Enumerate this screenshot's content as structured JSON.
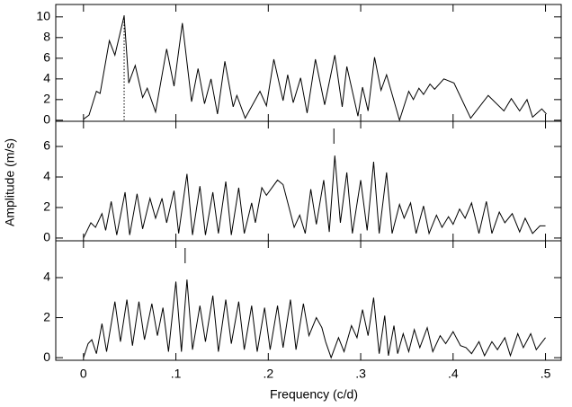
{
  "chart_data": [
    {
      "type": "line",
      "xlim": [
        -0.03,
        0.517
      ],
      "ylim": [
        -0.1,
        11.2
      ],
      "xticks": [
        0,
        0.1,
        0.2,
        0.3,
        0.4,
        0.5
      ],
      "yticks": [
        0,
        2,
        4,
        6,
        8,
        10
      ],
      "marker_x": 0.044,
      "marker_style": "dotted",
      "color": "#000000",
      "x": [
        0.0,
        0.006,
        0.014,
        0.018,
        0.028,
        0.034,
        0.044,
        0.049,
        0.056,
        0.064,
        0.069,
        0.078,
        0.09,
        0.098,
        0.107,
        0.117,
        0.124,
        0.131,
        0.138,
        0.145,
        0.153,
        0.162,
        0.166,
        0.175,
        0.191,
        0.198,
        0.206,
        0.216,
        0.221,
        0.227,
        0.235,
        0.242,
        0.251,
        0.261,
        0.272,
        0.28,
        0.285,
        0.297,
        0.302,
        0.308,
        0.315,
        0.322,
        0.328,
        0.342,
        0.352,
        0.357,
        0.363,
        0.368,
        0.375,
        0.38,
        0.39,
        0.401,
        0.419,
        0.438,
        0.455,
        0.463,
        0.472,
        0.48,
        0.486,
        0.496,
        0.501
      ],
      "values": [
        0.1,
        0.5,
        2.8,
        2.6,
        7.7,
        6.3,
        10.1,
        3.6,
        5.3,
        2.2,
        3.1,
        0.8,
        6.9,
        3.3,
        9.4,
        1.8,
        5.0,
        1.6,
        4.0,
        0.6,
        5.7,
        1.3,
        2.4,
        0.2,
        2.8,
        1.4,
        5.9,
        1.9,
        4.4,
        1.7,
        4.1,
        0.7,
        5.9,
        1.5,
        6.3,
        1.3,
        5.2,
        0.4,
        3.2,
        0.9,
        6.1,
        2.9,
        4.4,
        0.0,
        2.8,
        2.0,
        3.1,
        2.5,
        3.5,
        3.0,
        4.0,
        3.6,
        0.2,
        2.4,
        0.9,
        2.1,
        0.9,
        2.0,
        0.3,
        1.1,
        0.6
      ]
    },
    {
      "type": "line",
      "xlim": [
        -0.03,
        0.517
      ],
      "ylim": [
        -0.18,
        7.65
      ],
      "xticks": [
        0,
        0.1,
        0.2,
        0.3,
        0.4,
        0.5
      ],
      "yticks": [
        0,
        2,
        4,
        6
      ],
      "ylabel": "Amplitude (m/s)",
      "marker_x": 0.271,
      "marker_style": "tick",
      "color": "#000000",
      "x": [
        0.0,
        0.008,
        0.013,
        0.02,
        0.024,
        0.03,
        0.036,
        0.045,
        0.05,
        0.058,
        0.064,
        0.072,
        0.078,
        0.085,
        0.09,
        0.098,
        0.103,
        0.112,
        0.118,
        0.126,
        0.132,
        0.14,
        0.146,
        0.154,
        0.16,
        0.168,
        0.174,
        0.182,
        0.186,
        0.193,
        0.198,
        0.21,
        0.216,
        0.228,
        0.234,
        0.24,
        0.246,
        0.252,
        0.26,
        0.266,
        0.272,
        0.278,
        0.285,
        0.291,
        0.3,
        0.307,
        0.314,
        0.32,
        0.328,
        0.334,
        0.342,
        0.347,
        0.354,
        0.36,
        0.368,
        0.374,
        0.382,
        0.388,
        0.395,
        0.4,
        0.407,
        0.413,
        0.42,
        0.428,
        0.436,
        0.442,
        0.45,
        0.456,
        0.464,
        0.472,
        0.478,
        0.486,
        0.494,
        0.5
      ],
      "values": [
        0.0,
        1.0,
        0.7,
        1.6,
        0.5,
        2.4,
        0.2,
        3.0,
        0.2,
        2.9,
        0.6,
        2.6,
        1.3,
        2.6,
        1.0,
        3.1,
        0.3,
        4.2,
        0.2,
        3.4,
        0.2,
        3.0,
        0.3,
        3.7,
        0.2,
        3.3,
        0.3,
        2.3,
        1.0,
        3.3,
        2.8,
        3.8,
        3.5,
        0.7,
        1.5,
        0.3,
        3.2,
        0.9,
        3.8,
        0.4,
        5.4,
        1.0,
        4.3,
        0.3,
        3.8,
        0.5,
        5.0,
        0.3,
        4.3,
        0.3,
        2.2,
        1.3,
        2.3,
        0.3,
        2.1,
        0.3,
        1.5,
        0.7,
        1.4,
        0.9,
        1.9,
        1.3,
        2.3,
        0.3,
        2.4,
        0.3,
        1.7,
        1.0,
        1.6,
        0.4,
        1.3,
        0.3,
        0.8,
        0.8
      ]
    },
    {
      "type": "line",
      "xlim": [
        -0.03,
        0.517
      ],
      "ylim": [
        -0.13,
        5.84
      ],
      "xticks": [
        0,
        {
          "value": 0.1,
          "label": ".1"
        },
        {
          "value": 0.2,
          "label": ".2"
        },
        {
          "value": 0.3,
          "label": ".3"
        },
        {
          "value": 0.4,
          "label": ".4"
        },
        {
          "value": 0.5,
          "label": ".5"
        }
      ],
      "yticks": [
        0,
        2,
        4
      ],
      "xlabel": "Frequency (c/d)",
      "marker_x": 0.11,
      "marker_style": "tick",
      "color": "#000000",
      "x": [
        0.0,
        0.005,
        0.009,
        0.014,
        0.02,
        0.025,
        0.034,
        0.04,
        0.047,
        0.053,
        0.06,
        0.066,
        0.074,
        0.08,
        0.086,
        0.092,
        0.1,
        0.106,
        0.112,
        0.118,
        0.126,
        0.132,
        0.14,
        0.146,
        0.154,
        0.16,
        0.168,
        0.174,
        0.182,
        0.188,
        0.196,
        0.202,
        0.21,
        0.216,
        0.224,
        0.23,
        0.238,
        0.244,
        0.252,
        0.258,
        0.262,
        0.268,
        0.276,
        0.282,
        0.29,
        0.296,
        0.302,
        0.308,
        0.314,
        0.32,
        0.326,
        0.33,
        0.336,
        0.34,
        0.346,
        0.352,
        0.358,
        0.364,
        0.372,
        0.378,
        0.386,
        0.392,
        0.4,
        0.408,
        0.414,
        0.42,
        0.428,
        0.434,
        0.442,
        0.448,
        0.456,
        0.462,
        0.47,
        0.476,
        0.484,
        0.49,
        0.5
      ],
      "values": [
        0.0,
        0.7,
        0.9,
        0.2,
        1.7,
        0.3,
        2.8,
        0.8,
        2.9,
        0.6,
        2.8,
        0.9,
        2.7,
        1.1,
        2.5,
        0.3,
        3.8,
        0.3,
        3.9,
        0.4,
        2.6,
        0.8,
        3.1,
        0.3,
        2.9,
        0.7,
        2.8,
        0.4,
        2.6,
        0.3,
        2.5,
        0.4,
        2.6,
        0.5,
        2.9,
        0.4,
        2.7,
        1.1,
        2.0,
        1.5,
        0.8,
        0.0,
        1.0,
        0.3,
        1.6,
        1.0,
        2.4,
        1.1,
        3.0,
        0.2,
        2.1,
        0.1,
        1.6,
        0.2,
        1.2,
        0.3,
        1.4,
        0.5,
        1.5,
        0.3,
        1.1,
        0.7,
        1.3,
        0.6,
        0.5,
        0.2,
        0.8,
        0.1,
        0.8,
        0.4,
        1.0,
        0.1,
        1.2,
        0.5,
        1.2,
        0.4,
        1.0
      ]
    }
  ]
}
